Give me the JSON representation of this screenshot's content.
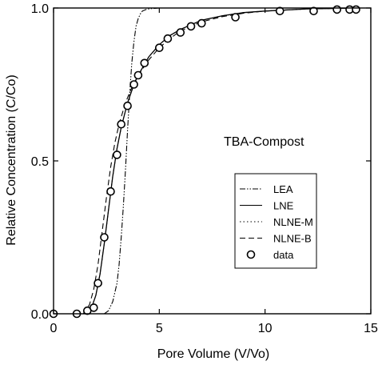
{
  "chart_data": {
    "type": "line",
    "title": "",
    "annotation": "TBA-Compost",
    "xlabel": "Pore Volume (V/Vo)",
    "ylabel": "Relative Concentration (C/Co)",
    "xlim": [
      0,
      15
    ],
    "ylim": [
      0,
      1
    ],
    "x_ticks": [
      0,
      5,
      10,
      15
    ],
    "x_tick_labels": [
      "0",
      "5",
      "10",
      "15"
    ],
    "y_ticks": [
      0,
      0.5,
      1
    ],
    "y_tick_labels": [
      "0.0",
      "0.5",
      "1.0"
    ],
    "grid": false,
    "legend_position": "center-right",
    "series": [
      {
        "name": "LEA",
        "style": "dash-dot-dot",
        "color": "#000000",
        "x": [
          2.4,
          2.6,
          2.8,
          3.0,
          3.1,
          3.2,
          3.3,
          3.4,
          3.5,
          3.6,
          3.7,
          3.8,
          3.9,
          4.0,
          4.1,
          4.2,
          4.4,
          4.6,
          4.8,
          5.0,
          6.0,
          8.0,
          10.0,
          15.0
        ],
        "y": [
          0.0,
          0.01,
          0.04,
          0.1,
          0.16,
          0.25,
          0.35,
          0.47,
          0.6,
          0.72,
          0.82,
          0.89,
          0.94,
          0.965,
          0.98,
          0.99,
          0.996,
          0.998,
          0.999,
          1.0,
          1.0,
          1.0,
          1.0,
          1.0
        ]
      },
      {
        "name": "LNE",
        "style": "solid",
        "color": "#000000",
        "x": [
          1.5,
          1.8,
          2.0,
          2.2,
          2.4,
          2.6,
          2.8,
          3.0,
          3.2,
          3.5,
          3.8,
          4.0,
          4.5,
          5.0,
          5.5,
          6.0,
          7.0,
          8.0,
          9.0,
          10.0,
          12.0,
          14.5
        ],
        "y": [
          0.0,
          0.02,
          0.06,
          0.13,
          0.23,
          0.34,
          0.45,
          0.54,
          0.61,
          0.69,
          0.75,
          0.78,
          0.84,
          0.88,
          0.91,
          0.93,
          0.96,
          0.975,
          0.985,
          0.99,
          0.997,
          1.0
        ]
      },
      {
        "name": "NLNE-M",
        "style": "dotted",
        "color": "#000000",
        "x": [
          1.5,
          1.8,
          2.0,
          2.2,
          2.4,
          2.6,
          2.8,
          3.0,
          3.2,
          3.5,
          3.8,
          4.0,
          4.5,
          5.0,
          5.5,
          6.0,
          7.0,
          8.0,
          9.0,
          10.0,
          12.0,
          14.5
        ],
        "y": [
          0.0,
          0.02,
          0.06,
          0.13,
          0.23,
          0.34,
          0.45,
          0.54,
          0.61,
          0.69,
          0.75,
          0.78,
          0.84,
          0.88,
          0.91,
          0.93,
          0.96,
          0.975,
          0.985,
          0.99,
          0.997,
          1.0
        ]
      },
      {
        "name": "NLNE-B",
        "style": "dashed",
        "color": "#000000",
        "x": [
          1.4,
          1.7,
          1.9,
          2.1,
          2.3,
          2.5,
          2.7,
          2.9,
          3.1,
          3.4,
          3.7,
          4.0,
          4.5,
          5.0,
          5.5,
          6.0,
          7.0,
          8.0,
          9.0,
          10.0,
          12.0,
          14.5
        ],
        "y": [
          0.0,
          0.03,
          0.08,
          0.16,
          0.27,
          0.38,
          0.48,
          0.56,
          0.62,
          0.69,
          0.74,
          0.78,
          0.83,
          0.87,
          0.9,
          0.925,
          0.955,
          0.972,
          0.983,
          0.99,
          0.997,
          1.0
        ]
      }
    ],
    "data_points": {
      "name": "data",
      "marker": "open-circle",
      "x": [
        0.0,
        1.1,
        1.6,
        1.9,
        2.1,
        2.4,
        2.7,
        3.0,
        3.2,
        3.5,
        3.8,
        4.0,
        4.3,
        5.0,
        5.4,
        6.0,
        6.5,
        7.0,
        8.6,
        10.7,
        12.3,
        13.4,
        14.0,
        14.3
      ],
      "y": [
        0.0,
        0.0,
        0.01,
        0.02,
        0.1,
        0.25,
        0.4,
        0.52,
        0.62,
        0.68,
        0.75,
        0.78,
        0.82,
        0.87,
        0.9,
        0.92,
        0.94,
        0.95,
        0.97,
        0.99,
        0.99,
        0.995,
        0.995,
        0.995
      ]
    }
  }
}
